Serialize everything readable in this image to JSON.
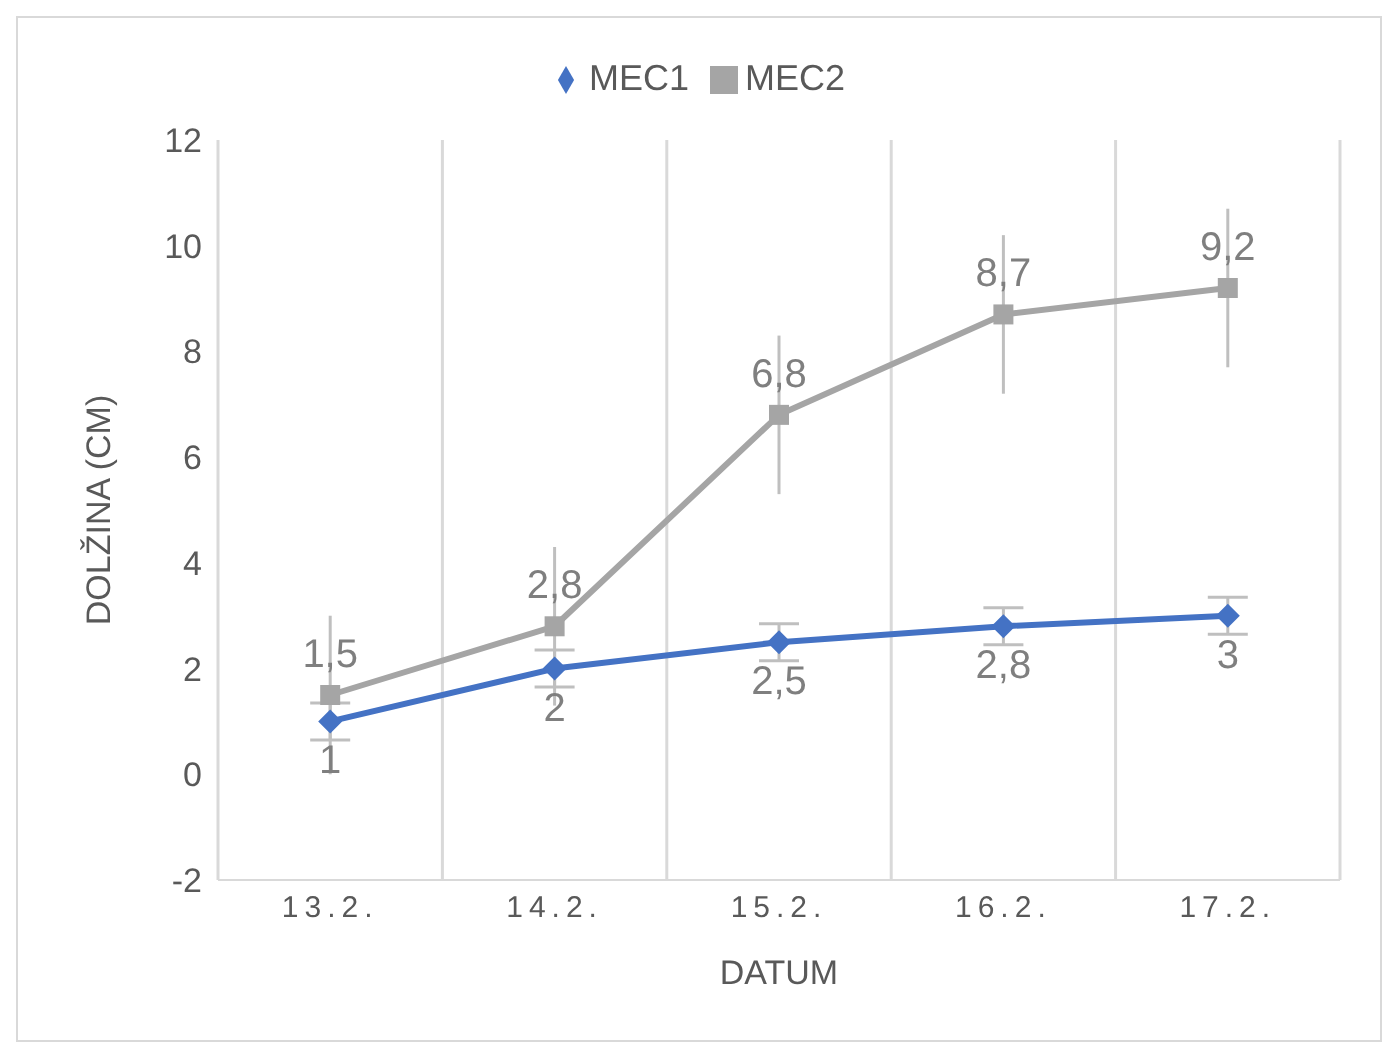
{
  "chart_data": {
    "type": "line",
    "xlabel": "DATUM",
    "ylabel": "DOLŽINA (CM)",
    "categories": [
      "13.2.",
      "14.2.",
      "15.2.",
      "16.2.",
      "17.2."
    ],
    "series": [
      {
        "name": "MEC1",
        "color": "#4472c4",
        "values": [
          1,
          2,
          2.5,
          2.8,
          3
        ],
        "errors": [
          0.35,
          0.35,
          0.35,
          0.35,
          0.35
        ],
        "value_labels": [
          "1",
          "2",
          "2,5",
          "2,8",
          "3"
        ],
        "marker": "diamond"
      },
      {
        "name": "MEC2",
        "color": "#a5a5a5",
        "values": [
          1.5,
          2.8,
          6.8,
          8.7,
          9.2
        ],
        "errors": [
          1.5,
          1.5,
          1.5,
          1.5,
          1.5
        ],
        "value_labels": [
          "1,5",
          "2,8",
          "6,8",
          "8,7",
          "9,2"
        ],
        "marker": "square"
      }
    ],
    "ylim": [
      -2,
      12
    ],
    "yticks": [
      -2,
      0,
      2,
      4,
      6,
      8,
      10,
      12
    ],
    "grid": "x",
    "legend": "top",
    "line_style": "solid"
  }
}
